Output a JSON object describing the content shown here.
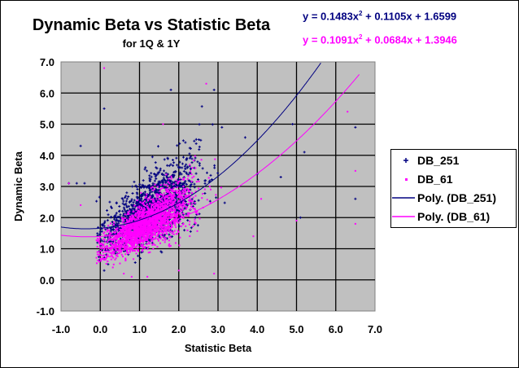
{
  "chart_data": {
    "type": "scatter",
    "title": "Dynamic Beta vs Statistic Beta",
    "subtitle": "for 1Q & 1Y",
    "xlabel": "Statistic Beta",
    "ylabel": "Dynamic Beta",
    "xlim": [
      -1.0,
      7.0
    ],
    "ylim": [
      -1.0,
      7.0
    ],
    "x_ticks": [
      "-1.0",
      "0.0",
      "1.0",
      "2.0",
      "3.0",
      "4.0",
      "5.0",
      "6.0",
      "7.0"
    ],
    "y_ticks": [
      "7.0",
      "6.0",
      "5.0",
      "4.0",
      "3.0",
      "2.0",
      "1.0",
      "0.0",
      "-1.0"
    ],
    "x_tick_values": [
      -1,
      0,
      1,
      2,
      3,
      4,
      5,
      6,
      7
    ],
    "y_tick_values": [
      7,
      6,
      5,
      4,
      3,
      2,
      1,
      0,
      -1
    ],
    "grid": true,
    "plot_background": "#c0c0c0",
    "legend_position": "right",
    "legend": [
      "DB_251",
      "DB_61",
      "Poly. (DB_251)",
      "Poly. (DB_61)"
    ],
    "series": [
      {
        "name": "DB_251",
        "kind": "scatter",
        "marker": "plus",
        "color": "#000080",
        "cloud": {
          "count": 1400,
          "x_mean": 1.3,
          "x_sd": 0.6,
          "slope": 0.75,
          "intercept": 1.35,
          "y_sd": 0.65,
          "seed": 7
        },
        "outliers": [
          [
            0.1,
            5.5
          ],
          [
            -0.5,
            4.3
          ],
          [
            -0.8,
            3.1
          ],
          [
            -0.6,
            3.1
          ],
          [
            -0.4,
            3.1
          ],
          [
            3.5,
            7.0
          ],
          [
            1.8,
            6.1
          ],
          [
            2.9,
            6.1
          ],
          [
            3.1,
            4.9
          ],
          [
            4.9,
            5.0
          ],
          [
            5.2,
            4.1
          ],
          [
            6.5,
            4.9
          ],
          [
            6.5,
            2.6
          ],
          [
            5.1,
            2.0
          ],
          [
            4.0,
            3.4
          ],
          [
            4.6,
            3.3
          ],
          [
            0.0,
            0.8
          ],
          [
            0.1,
            0.3
          ],
          [
            0.2,
            0.5
          ]
        ]
      },
      {
        "name": "DB_61",
        "kind": "scatter",
        "marker": "square",
        "color": "#ff00ff",
        "cloud": {
          "count": 2200,
          "x_mean": 1.2,
          "x_sd": 0.55,
          "slope": 0.72,
          "intercept": 0.95,
          "y_sd": 0.45,
          "seed": 13
        },
        "outliers": [
          [
            0.1,
            6.8
          ],
          [
            2.7,
            6.3
          ],
          [
            -0.8,
            3.1
          ],
          [
            -0.5,
            2.4
          ],
          [
            1.6,
            5.0
          ],
          [
            6.5,
            3.5
          ],
          [
            6.5,
            1.8
          ],
          [
            6.3,
            5.4
          ],
          [
            5.0,
            1.9
          ],
          [
            4.1,
            2.6
          ],
          [
            3.9,
            1.4
          ],
          [
            0.6,
            0.2
          ],
          [
            1.2,
            0.1
          ],
          [
            0.8,
            0.1
          ],
          [
            2.0,
            0.3
          ],
          [
            2.9,
            0.2
          ]
        ]
      },
      {
        "name": "Poly. (DB_251)",
        "kind": "trendline",
        "color": "#000080",
        "coefficients": [
          0.1483,
          0.1105,
          1.6599
        ],
        "equation": "y = 0.1483x",
        "equation_rest": " + 0.1105x + 1.6599",
        "x_range": [
          -1.0,
          6.6
        ]
      },
      {
        "name": "Poly. (DB_61)",
        "kind": "trendline",
        "color": "#ff00ff",
        "coefficients": [
          0.1091,
          0.0684,
          1.3946
        ],
        "equation": "y = 0.1091x",
        "equation_rest": " + 0.0684x + 1.3946",
        "x_range": [
          -1.0,
          6.6
        ]
      }
    ],
    "superscript": "2"
  }
}
